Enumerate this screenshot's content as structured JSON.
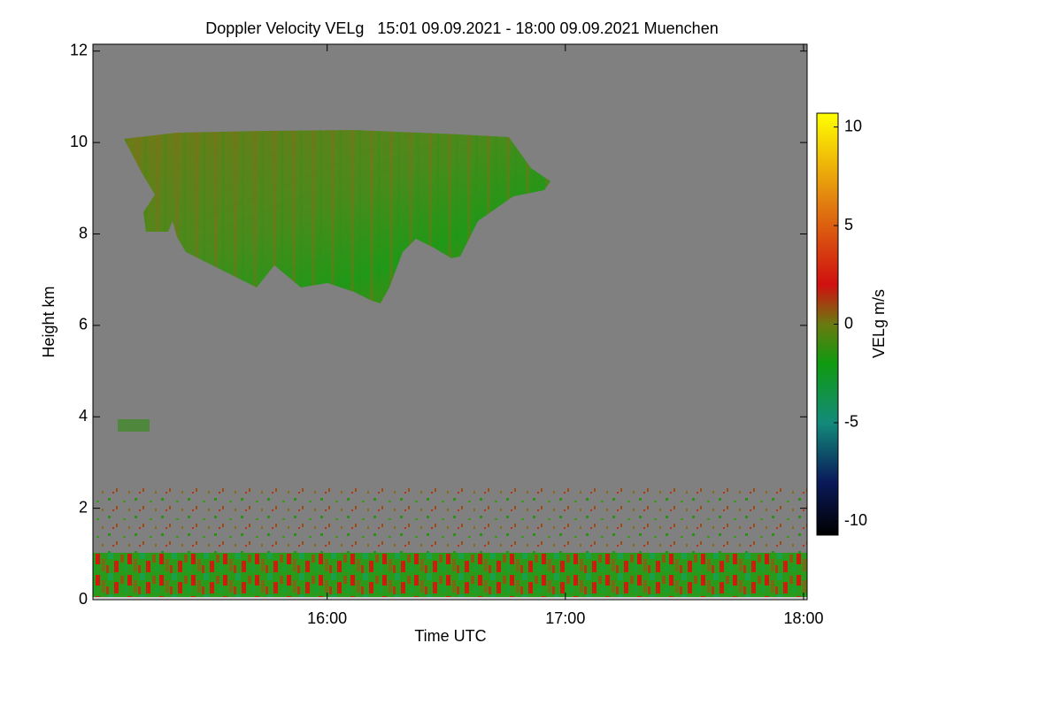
{
  "chart_data": {
    "type": "heatmap",
    "title": "Doppler Velocity VELg   15:01 09.09.2021 - 18:00 09.09.2021 Muenchen",
    "x_label": "Time UTC",
    "y_label": "Height km",
    "colorbar_label": "VELg m/s",
    "xlim": [
      15.0167,
      18.015
    ],
    "xticks": [
      {
        "value": 16,
        "label": "16:00"
      },
      {
        "value": 17,
        "label": "17:00"
      },
      {
        "value": 18,
        "label": "18:00"
      }
    ],
    "ylim": [
      0,
      12.15
    ],
    "yticks": [
      0,
      2,
      4,
      6,
      8,
      10,
      12
    ],
    "zlim": [
      -10.7,
      10.7
    ],
    "zticks": [
      -10,
      -5,
      0,
      5,
      10
    ],
    "colorscale": [
      [
        -10.7,
        "#000000"
      ],
      [
        -8,
        "#0a1a5a"
      ],
      [
        -5,
        "#138a7a"
      ],
      [
        -2,
        "#0f9a10"
      ],
      [
        0,
        "#6a7a10"
      ],
      [
        2,
        "#d01010"
      ],
      [
        6,
        "#e07a10"
      ],
      [
        10.7,
        "#ffff00"
      ]
    ]
  }
}
